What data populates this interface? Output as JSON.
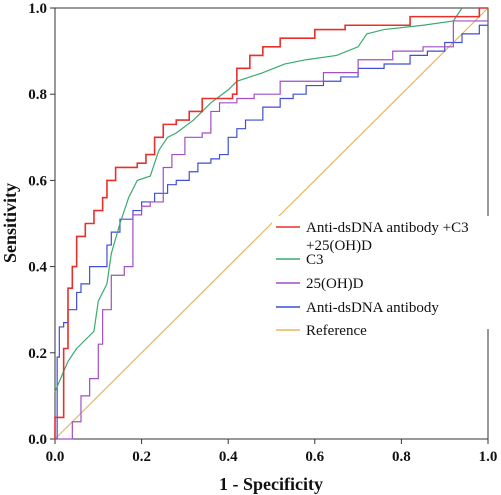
{
  "chart_data": {
    "type": "line",
    "title": "",
    "xlabel": "1 - Specificity",
    "ylabel": "Sensitivity",
    "xlim": [
      0,
      1
    ],
    "ylim": [
      0,
      1
    ],
    "x_ticks": [
      "0.0",
      "0.2",
      "0.4",
      "0.6",
      "0.8",
      "1.0"
    ],
    "y_ticks": [
      "0.0",
      "0.2",
      "0.4",
      "0.6",
      "0.8",
      "1.0"
    ],
    "grid": false,
    "legend_position": "center-right",
    "series": [
      {
        "name": "Anti-dsDNA antibody +C3\n+25(OH)D",
        "color": "#e8302a",
        "step": true,
        "points": [
          [
            0,
            0
          ],
          [
            0,
            0.05
          ],
          [
            0.02,
            0.05
          ],
          [
            0.02,
            0.21
          ],
          [
            0.03,
            0.21
          ],
          [
            0.03,
            0.35
          ],
          [
            0.04,
            0.35
          ],
          [
            0.04,
            0.4
          ],
          [
            0.05,
            0.4
          ],
          [
            0.05,
            0.47
          ],
          [
            0.07,
            0.47
          ],
          [
            0.07,
            0.5
          ],
          [
            0.09,
            0.5
          ],
          [
            0.09,
            0.53
          ],
          [
            0.11,
            0.53
          ],
          [
            0.11,
            0.56
          ],
          [
            0.12,
            0.56
          ],
          [
            0.12,
            0.6
          ],
          [
            0.14,
            0.6
          ],
          [
            0.14,
            0.63
          ],
          [
            0.19,
            0.63
          ],
          [
            0.19,
            0.64
          ],
          [
            0.21,
            0.64
          ],
          [
            0.21,
            0.66
          ],
          [
            0.23,
            0.66
          ],
          [
            0.23,
            0.7
          ],
          [
            0.25,
            0.7
          ],
          [
            0.25,
            0.73
          ],
          [
            0.28,
            0.73
          ],
          [
            0.28,
            0.74
          ],
          [
            0.31,
            0.74
          ],
          [
            0.31,
            0.76
          ],
          [
            0.34,
            0.76
          ],
          [
            0.34,
            0.79
          ],
          [
            0.41,
            0.79
          ],
          [
            0.41,
            0.8
          ],
          [
            0.42,
            0.8
          ],
          [
            0.42,
            0.86
          ],
          [
            0.45,
            0.86
          ],
          [
            0.45,
            0.89
          ],
          [
            0.48,
            0.89
          ],
          [
            0.48,
            0.91
          ],
          [
            0.52,
            0.91
          ],
          [
            0.52,
            0.93
          ],
          [
            0.6,
            0.93
          ],
          [
            0.6,
            0.95
          ],
          [
            0.67,
            0.95
          ],
          [
            0.67,
            0.96
          ],
          [
            0.82,
            0.96
          ],
          [
            0.82,
            0.98
          ],
          [
            0.98,
            0.98
          ],
          [
            0.98,
            1.0
          ],
          [
            1.0,
            1.0
          ]
        ]
      },
      {
        "name": "C3",
        "color": "#3aaa6e",
        "step": false,
        "points": [
          [
            0,
            0.11
          ],
          [
            0.03,
            0.18
          ],
          [
            0.05,
            0.21
          ],
          [
            0.07,
            0.23
          ],
          [
            0.09,
            0.25
          ],
          [
            0.1,
            0.32
          ],
          [
            0.12,
            0.36
          ],
          [
            0.13,
            0.43
          ],
          [
            0.15,
            0.5
          ],
          [
            0.17,
            0.56
          ],
          [
            0.19,
            0.6
          ],
          [
            0.22,
            0.61
          ],
          [
            0.24,
            0.67
          ],
          [
            0.26,
            0.7
          ],
          [
            0.28,
            0.71
          ],
          [
            0.32,
            0.74
          ],
          [
            0.34,
            0.76
          ],
          [
            0.36,
            0.78
          ],
          [
            0.4,
            0.81
          ],
          [
            0.42,
            0.83
          ],
          [
            0.45,
            0.84
          ],
          [
            0.48,
            0.85
          ],
          [
            0.53,
            0.87
          ],
          [
            0.58,
            0.88
          ],
          [
            0.65,
            0.89
          ],
          [
            0.7,
            0.91
          ],
          [
            0.72,
            0.94
          ],
          [
            0.76,
            0.95
          ],
          [
            0.85,
            0.96
          ],
          [
            0.92,
            0.97
          ],
          [
            0.94,
            1.0
          ]
        ]
      },
      {
        "name": "25(OH)D",
        "color": "#a24fc2",
        "step": true,
        "points": [
          [
            0,
            0
          ],
          [
            0.04,
            0
          ],
          [
            0.04,
            0.04
          ],
          [
            0.06,
            0.04
          ],
          [
            0.06,
            0.1
          ],
          [
            0.08,
            0.1
          ],
          [
            0.08,
            0.14
          ],
          [
            0.1,
            0.14
          ],
          [
            0.1,
            0.22
          ],
          [
            0.11,
            0.22
          ],
          [
            0.11,
            0.3
          ],
          [
            0.13,
            0.3
          ],
          [
            0.13,
            0.38
          ],
          [
            0.16,
            0.38
          ],
          [
            0.16,
            0.4
          ],
          [
            0.18,
            0.4
          ],
          [
            0.18,
            0.52
          ],
          [
            0.2,
            0.52
          ],
          [
            0.2,
            0.54
          ],
          [
            0.22,
            0.54
          ],
          [
            0.22,
            0.55
          ],
          [
            0.25,
            0.55
          ],
          [
            0.25,
            0.63
          ],
          [
            0.27,
            0.63
          ],
          [
            0.27,
            0.66
          ],
          [
            0.3,
            0.66
          ],
          [
            0.3,
            0.7
          ],
          [
            0.34,
            0.7
          ],
          [
            0.34,
            0.71
          ],
          [
            0.36,
            0.71
          ],
          [
            0.36,
            0.76
          ],
          [
            0.38,
            0.76
          ],
          [
            0.38,
            0.78
          ],
          [
            0.42,
            0.78
          ],
          [
            0.42,
            0.79
          ],
          [
            0.46,
            0.79
          ],
          [
            0.46,
            0.8
          ],
          [
            0.52,
            0.8
          ],
          [
            0.52,
            0.83
          ],
          [
            0.62,
            0.83
          ],
          [
            0.62,
            0.85
          ],
          [
            0.7,
            0.85
          ],
          [
            0.7,
            0.88
          ],
          [
            0.78,
            0.88
          ],
          [
            0.78,
            0.9
          ],
          [
            0.85,
            0.9
          ],
          [
            0.85,
            0.91
          ],
          [
            0.92,
            0.91
          ],
          [
            0.92,
            0.97
          ],
          [
            1.0,
            0.97
          ]
        ]
      },
      {
        "name": "Anti-dsDNA antibody",
        "color": "#3f4fd6",
        "step": true,
        "points": [
          [
            0,
            0
          ],
          [
            0.005,
            0
          ],
          [
            0.005,
            0.19
          ],
          [
            0.01,
            0.19
          ],
          [
            0.01,
            0.26
          ],
          [
            0.02,
            0.26
          ],
          [
            0.02,
            0.27
          ],
          [
            0.03,
            0.27
          ],
          [
            0.03,
            0.3
          ],
          [
            0.05,
            0.3
          ],
          [
            0.05,
            0.34
          ],
          [
            0.06,
            0.34
          ],
          [
            0.06,
            0.36
          ],
          [
            0.08,
            0.36
          ],
          [
            0.08,
            0.4
          ],
          [
            0.12,
            0.4
          ],
          [
            0.12,
            0.45
          ],
          [
            0.13,
            0.45
          ],
          [
            0.13,
            0.48
          ],
          [
            0.15,
            0.48
          ],
          [
            0.15,
            0.51
          ],
          [
            0.18,
            0.51
          ],
          [
            0.18,
            0.53
          ],
          [
            0.2,
            0.53
          ],
          [
            0.2,
            0.55
          ],
          [
            0.23,
            0.55
          ],
          [
            0.23,
            0.57
          ],
          [
            0.26,
            0.57
          ],
          [
            0.26,
            0.59
          ],
          [
            0.28,
            0.59
          ],
          [
            0.28,
            0.6
          ],
          [
            0.31,
            0.6
          ],
          [
            0.31,
            0.62
          ],
          [
            0.33,
            0.62
          ],
          [
            0.33,
            0.64
          ],
          [
            0.36,
            0.64
          ],
          [
            0.36,
            0.65
          ],
          [
            0.38,
            0.65
          ],
          [
            0.38,
            0.66
          ],
          [
            0.4,
            0.66
          ],
          [
            0.4,
            0.7
          ],
          [
            0.42,
            0.7
          ],
          [
            0.42,
            0.72
          ],
          [
            0.44,
            0.72
          ],
          [
            0.44,
            0.74
          ],
          [
            0.48,
            0.74
          ],
          [
            0.48,
            0.77
          ],
          [
            0.52,
            0.77
          ],
          [
            0.52,
            0.79
          ],
          [
            0.55,
            0.79
          ],
          [
            0.55,
            0.8
          ],
          [
            0.58,
            0.8
          ],
          [
            0.58,
            0.82
          ],
          [
            0.62,
            0.82
          ],
          [
            0.62,
            0.83
          ],
          [
            0.66,
            0.83
          ],
          [
            0.66,
            0.84
          ],
          [
            0.7,
            0.84
          ],
          [
            0.7,
            0.86
          ],
          [
            0.76,
            0.86
          ],
          [
            0.76,
            0.87
          ],
          [
            0.82,
            0.87
          ],
          [
            0.82,
            0.89
          ],
          [
            0.86,
            0.89
          ],
          [
            0.86,
            0.9
          ],
          [
            0.9,
            0.9
          ],
          [
            0.9,
            0.92
          ],
          [
            0.94,
            0.92
          ],
          [
            0.94,
            0.94
          ],
          [
            0.98,
            0.94
          ],
          [
            0.98,
            0.96
          ],
          [
            1.0,
            0.96
          ]
        ]
      },
      {
        "name": "Reference",
        "color": "#e8b65c",
        "step": false,
        "points": [
          [
            0,
            0
          ],
          [
            1,
            1
          ]
        ]
      }
    ]
  }
}
